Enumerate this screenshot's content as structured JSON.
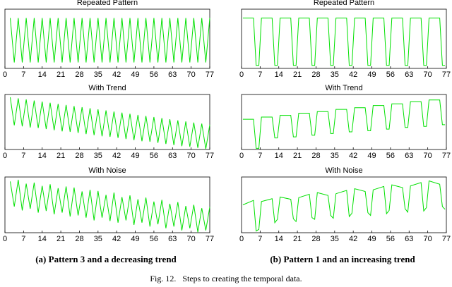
{
  "chart_data": [
    {
      "type": "line",
      "title": "Repeated Pattern",
      "color": "#00e000",
      "xlim": [
        0,
        77
      ],
      "ylim": [
        0,
        1
      ],
      "xticks": [
        0,
        7,
        14,
        21,
        28,
        35,
        42,
        49,
        56,
        63,
        70,
        77
      ],
      "x": [
        2,
        3.5,
        5,
        6.5,
        8,
        9.5,
        11,
        12.5,
        14,
        15.5,
        17,
        18.5,
        20,
        21.5,
        23,
        24.5,
        26,
        27.5,
        29,
        30.5,
        32,
        33.5,
        35,
        36.5,
        38,
        39.5,
        41,
        42.5,
        44,
        45.5,
        47,
        48.5,
        50,
        51.5,
        53,
        54.5,
        56,
        57.5,
        59,
        60.5,
        62,
        63.5,
        65,
        66.5,
        68,
        69.5,
        71,
        72.5,
        74,
        75.5,
        77
      ],
      "values": [
        0.85,
        0.1,
        0.85,
        0.1,
        0.85,
        0.1,
        0.85,
        0.1,
        0.85,
        0.1,
        0.85,
        0.1,
        0.85,
        0.1,
        0.85,
        0.1,
        0.85,
        0.1,
        0.85,
        0.1,
        0.85,
        0.1,
        0.85,
        0.1,
        0.85,
        0.1,
        0.85,
        0.1,
        0.85,
        0.1,
        0.85,
        0.1,
        0.85,
        0.1,
        0.85,
        0.1,
        0.85,
        0.1,
        0.85,
        0.1,
        0.85,
        0.1,
        0.85,
        0.1,
        0.85,
        0.1,
        0.85,
        0.1,
        0.85,
        0.1,
        0.85
      ]
    },
    {
      "type": "line",
      "title": "Repeated Pattern",
      "color": "#00e000",
      "xlim": [
        0,
        77
      ],
      "ylim": [
        0,
        1
      ],
      "xticks": [
        0,
        7,
        14,
        21,
        28,
        35,
        42,
        49,
        56,
        63,
        70,
        77
      ],
      "x": [
        0.5,
        4.5,
        5.5,
        6.5,
        7.5,
        11.5,
        12.5,
        13.5,
        14.5,
        18.5,
        19.5,
        20.5,
        21.5,
        25.5,
        26.5,
        27.5,
        28.5,
        32.5,
        33.5,
        34.5,
        35.5,
        39.5,
        40.5,
        41.5,
        42.5,
        46.5,
        47.5,
        48.5,
        49.5,
        53.5,
        54.5,
        55.5,
        56.5,
        60.5,
        61.5,
        62.5,
        63.5,
        67.5,
        68.5,
        69.5,
        70.5,
        74.5,
        75.5,
        76.5
      ],
      "values": [
        0.85,
        0.85,
        0.05,
        0.05,
        0.85,
        0.85,
        0.05,
        0.05,
        0.85,
        0.85,
        0.05,
        0.05,
        0.85,
        0.85,
        0.05,
        0.05,
        0.85,
        0.85,
        0.05,
        0.05,
        0.85,
        0.85,
        0.05,
        0.05,
        0.85,
        0.85,
        0.05,
        0.05,
        0.85,
        0.85,
        0.05,
        0.05,
        0.85,
        0.85,
        0.05,
        0.05,
        0.85,
        0.85,
        0.05,
        0.05,
        0.85,
        0.85,
        0.05,
        0.05
      ]
    },
    {
      "type": "line",
      "title": "With Trend",
      "color": "#00e000",
      "xlim": [
        0,
        77
      ],
      "ylim": [
        0,
        1
      ],
      "xticks": [
        0,
        7,
        14,
        21,
        28,
        35,
        42,
        49,
        56,
        63,
        70,
        77
      ],
      "x": [
        2,
        3.5,
        5,
        6.5,
        8,
        9.5,
        11,
        12.5,
        14,
        15.5,
        17,
        18.5,
        20,
        21.5,
        23,
        24.5,
        26,
        27.5,
        29,
        30.5,
        32,
        33.5,
        35,
        36.5,
        38,
        39.5,
        41,
        42.5,
        44,
        45.5,
        47,
        48.5,
        50,
        51.5,
        53,
        54.5,
        56,
        57.5,
        59,
        60.5,
        62,
        63.5,
        65,
        66.5,
        68,
        69.5,
        71,
        72.5,
        74,
        75.5,
        77
      ],
      "values": [
        0.95,
        0.44,
        0.93,
        0.42,
        0.91,
        0.4,
        0.89,
        0.39,
        0.87,
        0.37,
        0.85,
        0.35,
        0.83,
        0.33,
        0.81,
        0.32,
        0.79,
        0.3,
        0.77,
        0.28,
        0.75,
        0.26,
        0.73,
        0.24,
        0.71,
        0.23,
        0.69,
        0.21,
        0.67,
        0.19,
        0.65,
        0.17,
        0.63,
        0.15,
        0.61,
        0.14,
        0.59,
        0.12,
        0.57,
        0.1,
        0.55,
        0.08,
        0.53,
        0.06,
        0.51,
        0.05,
        0.49,
        0.03,
        0.47,
        0.01,
        0.45
      ]
    },
    {
      "type": "line",
      "title": "With Trend",
      "color": "#00e000",
      "xlim": [
        0,
        77
      ],
      "ylim": [
        0,
        1
      ],
      "xticks": [
        0,
        7,
        14,
        21,
        28,
        35,
        42,
        49,
        56,
        63,
        70,
        77
      ],
      "x": [
        0.5,
        4.5,
        5.5,
        6.5,
        7.5,
        11.5,
        12.5,
        13.5,
        14.5,
        18.5,
        19.5,
        20.5,
        21.5,
        25.5,
        26.5,
        27.5,
        28.5,
        32.5,
        33.5,
        34.5,
        35.5,
        39.5,
        40.5,
        41.5,
        42.5,
        46.5,
        47.5,
        48.5,
        49.5,
        53.5,
        54.5,
        55.5,
        56.5,
        60.5,
        61.5,
        62.5,
        63.5,
        67.5,
        68.5,
        69.5,
        70.5,
        74.5,
        75.5,
        76.5
      ],
      "values": [
        0.55,
        0.55,
        0.02,
        0.02,
        0.59,
        0.59,
        0.21,
        0.21,
        0.62,
        0.62,
        0.23,
        0.23,
        0.66,
        0.66,
        0.26,
        0.26,
        0.69,
        0.69,
        0.29,
        0.29,
        0.73,
        0.73,
        0.32,
        0.32,
        0.76,
        0.76,
        0.34,
        0.34,
        0.8,
        0.8,
        0.37,
        0.37,
        0.83,
        0.83,
        0.4,
        0.4,
        0.87,
        0.87,
        0.42,
        0.42,
        0.9,
        0.9,
        0.45,
        0.45
      ]
    },
    {
      "type": "line",
      "title": "With Noise",
      "color": "#00e000",
      "xlim": [
        0,
        77
      ],
      "ylim": [
        0,
        1
      ],
      "xticks": [
        0,
        7,
        14,
        21,
        28,
        35,
        42,
        49,
        56,
        63,
        70,
        77
      ],
      "x": [
        2,
        3.5,
        5,
        6.5,
        8,
        9.5,
        11,
        12.5,
        14,
        15.5,
        17,
        18.5,
        20,
        21.5,
        23,
        24.5,
        26,
        27.5,
        29,
        30.5,
        32,
        33.5,
        35,
        36.5,
        38,
        39.5,
        41,
        42.5,
        44,
        45.5,
        47,
        48.5,
        50,
        51.5,
        53,
        54.5,
        56,
        57.5,
        59,
        60.5,
        62,
        63.5,
        65,
        66.5,
        68,
        69.5,
        71,
        72.5,
        74,
        75.5,
        77
      ],
      "values": [
        0.92,
        0.47,
        0.95,
        0.4,
        0.88,
        0.43,
        0.9,
        0.36,
        0.84,
        0.39,
        0.87,
        0.33,
        0.8,
        0.36,
        0.83,
        0.29,
        0.81,
        0.31,
        0.74,
        0.27,
        0.77,
        0.22,
        0.75,
        0.27,
        0.68,
        0.21,
        0.72,
        0.18,
        0.64,
        0.22,
        0.67,
        0.14,
        0.6,
        0.18,
        0.63,
        0.11,
        0.56,
        0.15,
        0.59,
        0.08,
        0.52,
        0.11,
        0.55,
        0.04,
        0.48,
        0.08,
        0.5,
        0.01,
        0.44,
        0.04,
        0.46
      ]
    },
    {
      "type": "line",
      "title": "With Noise",
      "color": "#00e000",
      "xlim": [
        0,
        77
      ],
      "ylim": [
        0,
        1
      ],
      "xticks": [
        0,
        7,
        14,
        21,
        28,
        35,
        42,
        49,
        56,
        63,
        70,
        77
      ],
      "x": [
        0.5,
        4.5,
        5.5,
        6.5,
        7.5,
        11.5,
        12.5,
        13.5,
        14.5,
        18.5,
        19.5,
        20.5,
        21.5,
        25.5,
        26.5,
        27.5,
        28.5,
        32.5,
        33.5,
        34.5,
        35.5,
        39.5,
        40.5,
        41.5,
        42.5,
        46.5,
        47.5,
        48.5,
        49.5,
        53.5,
        54.5,
        55.5,
        56.5,
        60.5,
        61.5,
        62.5,
        63.5,
        67.5,
        68.5,
        69.5,
        70.5,
        74.5,
        75.5,
        76.5
      ],
      "values": [
        0.5,
        0.58,
        0.03,
        0.06,
        0.56,
        0.61,
        0.18,
        0.24,
        0.64,
        0.6,
        0.25,
        0.2,
        0.63,
        0.69,
        0.27,
        0.24,
        0.72,
        0.67,
        0.31,
        0.26,
        0.7,
        0.76,
        0.29,
        0.35,
        0.79,
        0.74,
        0.36,
        0.31,
        0.77,
        0.83,
        0.34,
        0.4,
        0.86,
        0.81,
        0.43,
        0.37,
        0.84,
        0.9,
        0.39,
        0.45,
        0.93,
        0.87,
        0.47,
        0.42
      ]
    }
  ],
  "subcaptions": [
    "(a) Pattern 3 and a decreasing trend",
    "(b) Pattern 1 and an increasing trend"
  ],
  "caption": "Fig. 12.   Steps to creating the temporal data."
}
